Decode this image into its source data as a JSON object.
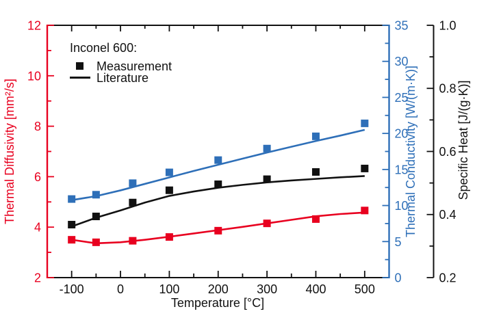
{
  "chart_data": {
    "type": "line",
    "title": "",
    "material": "Inconel 600",
    "legend": {
      "title": "Inconel 600:",
      "measurement_label": "Measurement",
      "literature_label": "Literature",
      "position": "top-left-inside"
    },
    "grid": "off",
    "x_axis": {
      "label": "Temperature [°C]",
      "range": [
        -150,
        550
      ],
      "major_ticks": [
        -100,
        0,
        100,
        200,
        300,
        400,
        500
      ],
      "major_tick_labels": [
        "-100",
        "0",
        "100",
        "200",
        "300",
        "400",
        "500"
      ],
      "minor_ticks": [
        -50,
        50,
        150,
        250,
        350,
        450
      ],
      "color": "#111111"
    },
    "y_left": {
      "id": "diffusivity",
      "label": "Thermal Diffusivity [mm²/s]",
      "units": "mm²/s",
      "range": [
        2,
        12
      ],
      "major_ticks": [
        2,
        4,
        6,
        8,
        10,
        12
      ],
      "major_tick_labels": [
        "2",
        "4",
        "6",
        "8",
        "10",
        "12"
      ],
      "minor_ticks": [
        3,
        5,
        7,
        9,
        11
      ],
      "color": "#e8001f"
    },
    "y_right": {
      "id": "conductivity",
      "label": "Thermal Conductivity [W/(m·K)]",
      "units": "W/(m·K)",
      "range": [
        0,
        35
      ],
      "major_ticks": [
        0,
        5,
        10,
        15,
        20,
        25,
        30,
        35
      ],
      "major_tick_labels": [
        "0",
        "5",
        "10",
        "15",
        "20",
        "25",
        "30",
        "35"
      ],
      "minor_ticks": [
        2.5,
        7.5,
        12.5,
        17.5,
        22.5,
        27.5,
        32.5
      ],
      "color": "#2e6fb8"
    },
    "y_right2": {
      "id": "specific-heat",
      "label": "Specific Heat [J/(g·K)]",
      "units": "J/(g·K)",
      "range": [
        0.2,
        1.0
      ],
      "major_ticks": [
        0.2,
        0.4,
        0.6,
        0.8,
        1.0
      ],
      "major_tick_labels": [
        "0.2",
        "0.4",
        "0.6",
        "0.8",
        "1.0"
      ],
      "minor_ticks": [
        0.3,
        0.5,
        0.7,
        0.9
      ],
      "color": "#111111"
    },
    "series": [
      {
        "id": "diffusivity-measurement",
        "name": "Thermal Diffusivity — Measurement",
        "axis": "y_left",
        "type": "scatter",
        "marker": "square",
        "color": "#e8001f",
        "x": [
          -100,
          -50,
          25,
          100,
          200,
          300,
          400,
          500
        ],
        "y": [
          3.5,
          3.4,
          3.46,
          3.61,
          3.86,
          4.15,
          4.32,
          4.66
        ]
      },
      {
        "id": "diffusivity-literature",
        "name": "Thermal Diffusivity — Literature",
        "axis": "y_left",
        "type": "line",
        "color": "#e8001f",
        "x": [
          -100,
          -50,
          0,
          50,
          100,
          150,
          200,
          250,
          300,
          350,
          400,
          450,
          500
        ],
        "y": [
          3.5,
          3.36,
          3.4,
          3.5,
          3.62,
          3.75,
          3.88,
          4.01,
          4.15,
          4.29,
          4.43,
          4.52,
          4.58
        ]
      },
      {
        "id": "conductivity-measurement",
        "name": "Thermal Conductivity — Measurement",
        "axis": "y_right",
        "type": "scatter",
        "marker": "square",
        "color": "#2e6fb8",
        "x": [
          -100,
          -50,
          25,
          100,
          200,
          300,
          400,
          500
        ],
        "y": [
          10.9,
          11.5,
          13.1,
          14.6,
          16.3,
          17.9,
          19.6,
          21.4
        ]
      },
      {
        "id": "conductivity-literature",
        "name": "Thermal Conductivity — Literature",
        "axis": "y_right",
        "type": "line",
        "color": "#2e6fb8",
        "x": [
          -100,
          -50,
          0,
          50,
          100,
          150,
          200,
          250,
          300,
          350,
          400,
          450,
          500
        ],
        "y": [
          10.75,
          11.3,
          12.1,
          13.0,
          13.9,
          14.8,
          15.65,
          16.5,
          17.35,
          18.15,
          18.95,
          19.7,
          20.5
        ]
      },
      {
        "id": "specific-heat-measurement",
        "name": "Specific Heat — Measurement",
        "axis": "y_right2",
        "type": "scatter",
        "marker": "square",
        "color": "#111111",
        "x": [
          -100,
          -50,
          25,
          100,
          200,
          300,
          400,
          500
        ],
        "y": [
          0.368,
          0.394,
          0.438,
          0.477,
          0.496,
          0.512,
          0.535,
          0.546
        ]
      },
      {
        "id": "specific-heat-literature",
        "name": "Specific Heat — Literature",
        "axis": "y_right2",
        "type": "line",
        "color": "#111111",
        "x": [
          -100,
          -50,
          0,
          50,
          100,
          150,
          200,
          250,
          300,
          350,
          400,
          450,
          500
        ],
        "y": [
          0.362,
          0.39,
          0.413,
          0.438,
          0.459,
          0.473,
          0.485,
          0.494,
          0.502,
          0.508,
          0.513,
          0.518,
          0.522
        ]
      }
    ]
  }
}
